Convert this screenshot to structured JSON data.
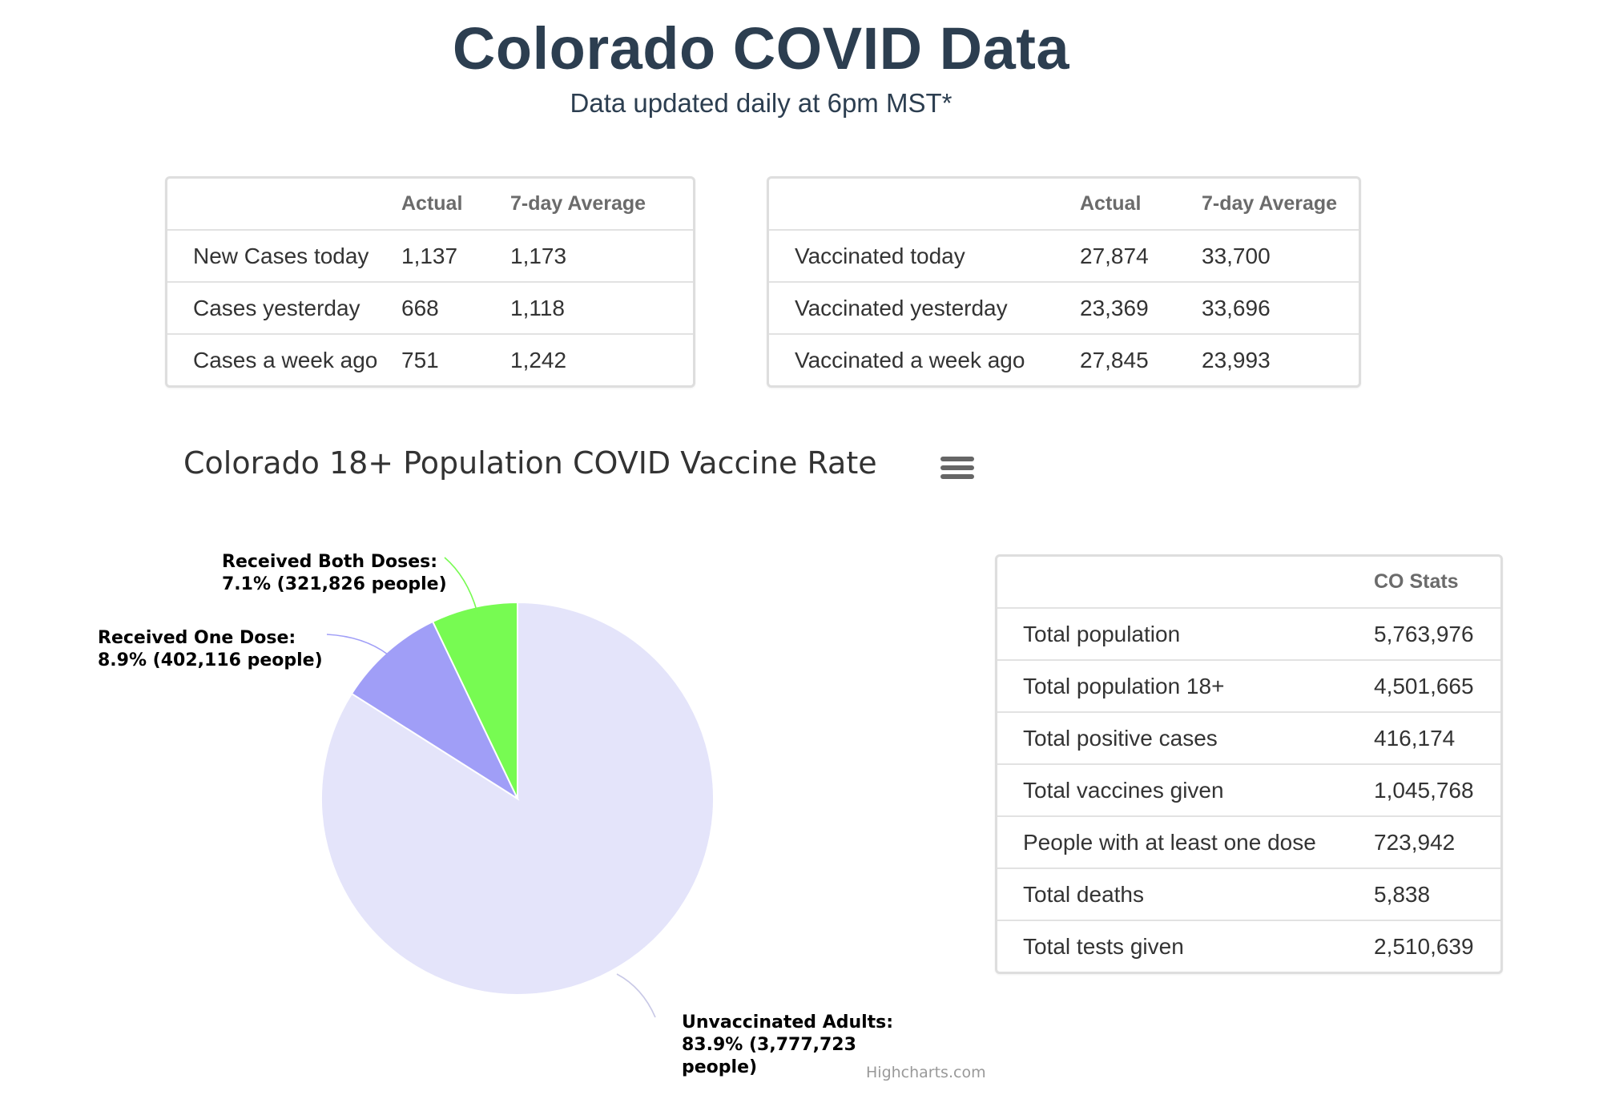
{
  "header": {
    "title": "Colorado COVID Data",
    "subtitle": "Data updated daily at 6pm MST*"
  },
  "cases_table": {
    "headers": [
      "",
      "Actual",
      "7-day Average"
    ],
    "rows": [
      [
        "New Cases today",
        "1,137",
        "1,173"
      ],
      [
        "Cases yesterday",
        "668",
        "1,118"
      ],
      [
        "Cases a week ago",
        "751",
        "1,242"
      ]
    ]
  },
  "vaccination_table": {
    "headers": [
      "",
      "Actual",
      "7-day Average"
    ],
    "rows": [
      [
        "Vaccinated today",
        "27,874",
        "33,700"
      ],
      [
        "Vaccinated yesterday",
        "23,369",
        "33,696"
      ],
      [
        "Vaccinated a week ago",
        "27,845",
        "23,993"
      ]
    ]
  },
  "co_stats_table": {
    "headers": [
      "",
      "CO Stats"
    ],
    "rows": [
      [
        "Total population",
        "5,763,976"
      ],
      [
        "Total population 18+",
        "4,501,665"
      ],
      [
        "Total positive cases",
        "416,174"
      ],
      [
        "Total vaccines given",
        "1,045,768"
      ],
      [
        "People with at least one dose",
        "723,942"
      ],
      [
        "Total deaths",
        "5,838"
      ],
      [
        "Total tests given",
        "2,510,639"
      ]
    ]
  },
  "chart_data": {
    "type": "pie",
    "title": "Colorado 18+ Population COVID Vaccine Rate",
    "slices": [
      {
        "name": "Received Both Doses",
        "percent": 7.1,
        "people": 321826,
        "color": "#77fb52",
        "label_lines": [
          "Received Both Doses:",
          "7.1% (321,826 people)"
        ]
      },
      {
        "name": "Received One Dose",
        "percent": 8.9,
        "people": 402116,
        "color": "#a09ef7",
        "label_lines": [
          "Received One Dose:",
          "8.9% (402,116 people)"
        ]
      },
      {
        "name": "Unvaccinated Adults",
        "percent": 83.9,
        "people": 3777723,
        "color": "#e4e4fa",
        "label_lines": [
          "Unvaccinated Adults:",
          "83.9% (3,777,723",
          "people)"
        ]
      }
    ],
    "legend": "none",
    "credits": "Highcharts.com"
  },
  "chart_menu": {
    "icon": "hamburger-menu-icon"
  }
}
